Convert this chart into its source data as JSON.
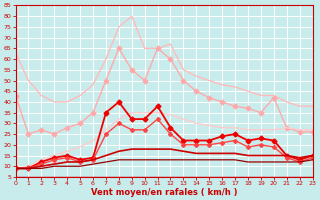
{
  "title": "",
  "xlabel": "Vent moyen/en rafales ( km/h )",
  "bg_color": "#c8ecec",
  "grid_color": "#ffffff",
  "xlim": [
    0,
    23
  ],
  "ylim": [
    5,
    85
  ],
  "yticks": [
    5,
    10,
    15,
    20,
    25,
    30,
    35,
    40,
    45,
    50,
    55,
    60,
    65,
    70,
    75,
    80,
    85
  ],
  "xticks": [
    0,
    1,
    2,
    3,
    4,
    5,
    6,
    7,
    8,
    9,
    10,
    11,
    12,
    13,
    14,
    15,
    16,
    17,
    18,
    19,
    20,
    21,
    22,
    23
  ],
  "series": [
    {
      "x": [
        0,
        1,
        2,
        3,
        4,
        5,
        6,
        7,
        8,
        9,
        10,
        11,
        12,
        13,
        14,
        15,
        16,
        17,
        18,
        19,
        20,
        21,
        22,
        23
      ],
      "y": [
        63,
        50,
        43,
        40,
        40,
        43,
        48,
        60,
        75,
        80,
        65,
        65,
        67,
        55,
        52,
        50,
        48,
        47,
        45,
        43,
        43,
        40,
        38,
        38
      ],
      "color": "#ffbbbb",
      "lw": 1.0,
      "marker": null,
      "ms": 0
    },
    {
      "x": [
        0,
        1,
        2,
        3,
        4,
        5,
        6,
        7,
        8,
        9,
        10,
        11,
        12,
        13,
        14,
        15,
        16,
        17,
        18,
        19,
        20,
        21,
        22,
        23
      ],
      "y": [
        43,
        25,
        27,
        25,
        28,
        30,
        35,
        50,
        65,
        55,
        50,
        65,
        60,
        50,
        45,
        42,
        40,
        38,
        37,
        35,
        42,
        28,
        26,
        26
      ],
      "color": "#ffaaaa",
      "lw": 1.0,
      "marker": "D",
      "ms": 2.5
    },
    {
      "x": [
        0,
        1,
        2,
        3,
        4,
        5,
        6,
        7,
        8,
        9,
        10,
        11,
        12,
        13,
        14,
        15,
        16,
        17,
        18,
        19,
        20,
        21,
        22,
        23
      ],
      "y": [
        9,
        10,
        13,
        15,
        17,
        19,
        22,
        27,
        32,
        35,
        35,
        35,
        34,
        32,
        30,
        29,
        28,
        28,
        27,
        27,
        27,
        28,
        27,
        27
      ],
      "color": "#ffcccc",
      "lw": 1.0,
      "marker": null,
      "ms": 0
    },
    {
      "x": [
        0,
        1,
        2,
        3,
        4,
        5,
        6,
        7,
        8,
        9,
        10,
        11,
        12,
        13,
        14,
        15,
        16,
        17,
        18,
        19,
        20,
        21,
        22,
        23
      ],
      "y": [
        9,
        9,
        12,
        14,
        15,
        13,
        14,
        35,
        40,
        32,
        32,
        38,
        28,
        22,
        22,
        22,
        24,
        25,
        22,
        23,
        22,
        15,
        13,
        15
      ],
      "color": "#ee0000",
      "lw": 1.3,
      "marker": "D",
      "ms": 2.5
    },
    {
      "x": [
        0,
        1,
        2,
        3,
        4,
        5,
        6,
        7,
        8,
        9,
        10,
        11,
        12,
        13,
        14,
        15,
        16,
        17,
        18,
        19,
        20,
        21,
        22,
        23
      ],
      "y": [
        9,
        9,
        11,
        13,
        14,
        12,
        13,
        25,
        30,
        27,
        27,
        32,
        25,
        20,
        20,
        20,
        21,
        22,
        19,
        20,
        19,
        14,
        12,
        14
      ],
      "color": "#ff4444",
      "lw": 1.0,
      "marker": "D",
      "ms": 2.0
    },
    {
      "x": [
        0,
        1,
        2,
        3,
        4,
        5,
        6,
        7,
        8,
        9,
        10,
        11,
        12,
        13,
        14,
        15,
        16,
        17,
        18,
        19,
        20,
        21,
        22,
        23
      ],
      "y": [
        9,
        9,
        10,
        11,
        12,
        12,
        13,
        15,
        17,
        18,
        18,
        18,
        18,
        17,
        16,
        16,
        16,
        16,
        15,
        15,
        15,
        15,
        14,
        15
      ],
      "color": "#cc0000",
      "lw": 1.2,
      "marker": null,
      "ms": 0
    },
    {
      "x": [
        0,
        1,
        2,
        3,
        4,
        5,
        6,
        7,
        8,
        9,
        10,
        11,
        12,
        13,
        14,
        15,
        16,
        17,
        18,
        19,
        20,
        21,
        22,
        23
      ],
      "y": [
        9,
        9,
        9,
        10,
        10,
        10,
        11,
        12,
        13,
        13,
        13,
        13,
        13,
        13,
        13,
        13,
        13,
        13,
        12,
        12,
        12,
        12,
        12,
        13
      ],
      "color": "#990000",
      "lw": 0.9,
      "marker": null,
      "ms": 0
    }
  ],
  "xlabel_color": "#cc0000",
  "tick_color": "#cc0000",
  "axis_color": "#cc0000"
}
